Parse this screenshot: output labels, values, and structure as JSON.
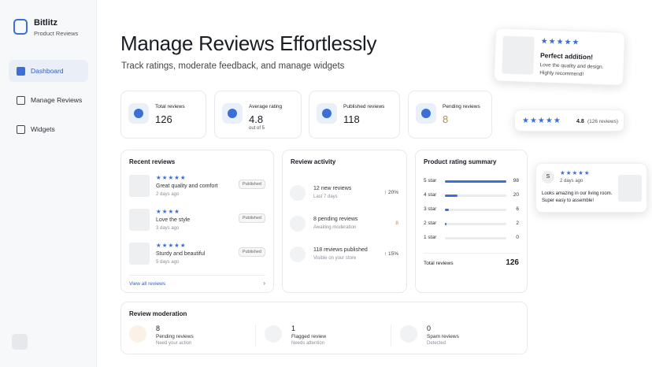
{
  "sidebar": {
    "brand": "Bitlitz",
    "subtitle": "Product Reviews",
    "nav": [
      "Dashboard",
      "Manage Reviews",
      "Widgets"
    ]
  },
  "header": {
    "title": "Manage Reviews Effortlessly",
    "subtitle": "Track ratings, moderate feedback, and manage widgets"
  },
  "stats": [
    {
      "label": "Total reviews",
      "value": "126"
    },
    {
      "label": "Average rating",
      "value": "4.8",
      "note": "out of 5"
    },
    {
      "label": "Published reviews",
      "value": "118"
    },
    {
      "label": "Pending reviews",
      "value": "8"
    }
  ],
  "recent": {
    "title": "Recent reviews",
    "items": [
      {
        "stars": 5,
        "text": "Great quality and comfort",
        "time": "2 days ago",
        "status": "Published"
      },
      {
        "stars": 4,
        "text": "Love the style",
        "time": "3 days ago",
        "status": "Published"
      },
      {
        "stars": 5,
        "text": "Sturdy and beautiful",
        "time": "5 days ago",
        "status": "Published"
      }
    ],
    "link": "View all reviews"
  },
  "activity": {
    "title": "Review activity",
    "items": [
      {
        "title": "12 new reviews",
        "sub": "Last 7 days",
        "change": "↑ 20%"
      },
      {
        "title": "8 pending reviews",
        "sub": "Awaiting moderation",
        "change": "8"
      },
      {
        "title": "118 reviews published",
        "sub": "Visible on your store",
        "change": "↑ 15%"
      }
    ]
  },
  "summary": {
    "title": "Product rating summary",
    "rows": [
      {
        "label": "5 star",
        "count": 98
      },
      {
        "label": "4 star",
        "count": 20
      },
      {
        "label": "3 star",
        "count": 6
      },
      {
        "label": "2 star",
        "count": 2
      },
      {
        "label": "1 star",
        "count": 0
      }
    ],
    "total_label": "Total reviews",
    "total": "126"
  },
  "moderation": {
    "title": "Review moderation",
    "items": [
      {
        "count": "8",
        "label": "Pending reviews",
        "sub": "Need your action"
      },
      {
        "count": "1",
        "label": "Flagged review",
        "sub": "Needs attention"
      },
      {
        "count": "0",
        "label": "Spam reviews",
        "sub": "Detected"
      }
    ]
  },
  "widgets": {
    "product_card": {
      "stars": 5,
      "title": "Perfect addition!",
      "text": "Love the quality and design. Highly recommend!"
    },
    "badge": {
      "stars": 5,
      "rating": "4.8",
      "count": "(126 reviews)"
    },
    "review_card": {
      "initial": "S",
      "stars": 5,
      "time": "2 days ago",
      "text": "Looks amazing in our living room. Super easy to assemble!"
    }
  }
}
